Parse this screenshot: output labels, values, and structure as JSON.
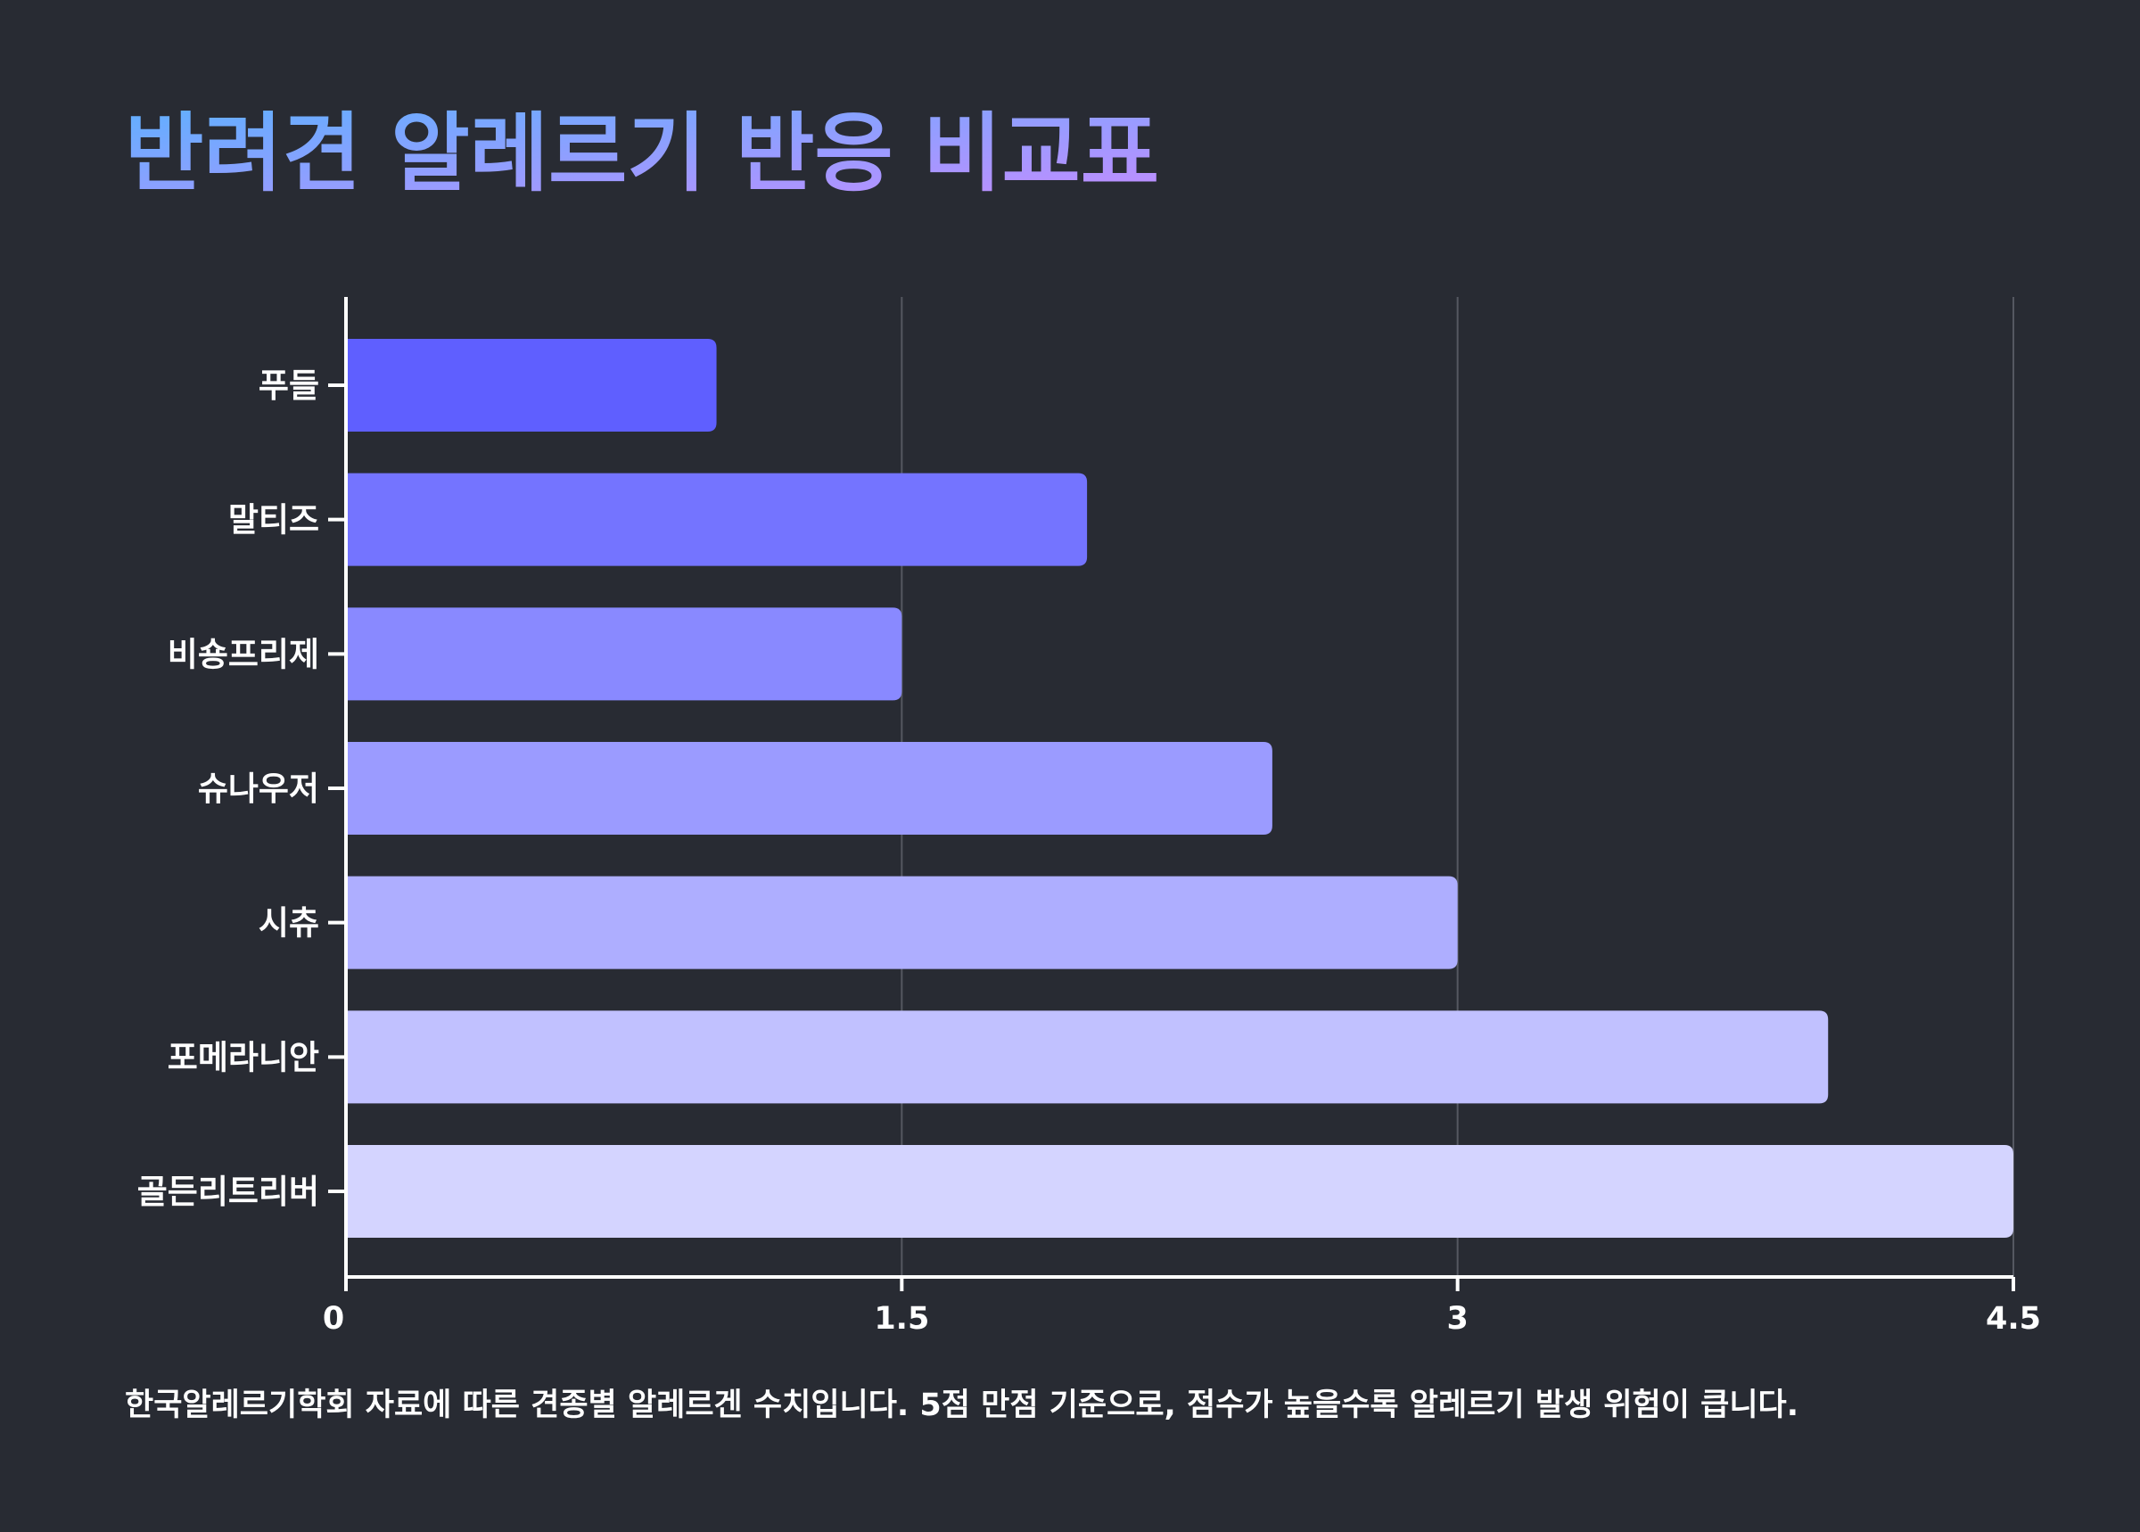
{
  "chart_data": {
    "type": "bar",
    "orientation": "horizontal",
    "title": "반려견 알레르기 반응 비교표",
    "caption": "한국알레르기학회 자료에 따른 견종별 알레르겐 수치입니다. 5점 만점 기준으로, 점수가 높을수록 알레르기 발생 위험이 큽니다.",
    "categories": [
      "푸들",
      "말티즈",
      "비숑프리제",
      "슈나우저",
      "시츄",
      "포메라니안",
      "골든리트리버"
    ],
    "values": [
      1.0,
      2.0,
      1.5,
      2.5,
      3.0,
      4.0,
      4.5
    ],
    "bar_colors": [
      "#5f5fff",
      "#7474ff",
      "#8989ff",
      "#9b9bff",
      "#aeaeff",
      "#c1c1ff",
      "#d4d4ff"
    ],
    "xlim": [
      0,
      4.5
    ],
    "x_ticks": [
      0,
      1.5,
      3,
      4.5
    ],
    "x_tick_labels": [
      "0",
      "1.5",
      "3",
      "4.5"
    ],
    "grid": "vertical",
    "xlabel": "",
    "ylabel": "",
    "colors": {
      "background": "#282b33",
      "title_gradient_start": "#5fb0ff",
      "title_gradient_end": "#c48cff",
      "axis": "#ffffff",
      "grid": "#555861",
      "text": "#ffffff"
    }
  }
}
